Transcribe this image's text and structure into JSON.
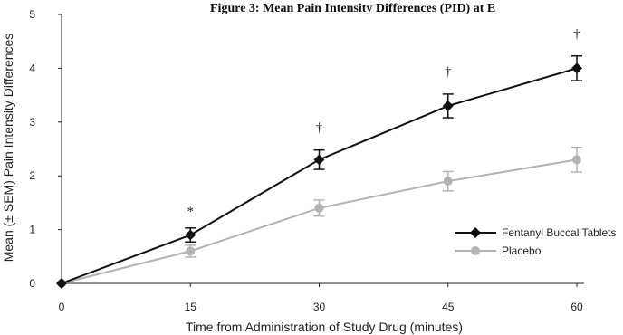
{
  "chart_data": {
    "type": "line",
    "title": "Figure 3: Mean Pain Intensity Differences (PID) at E",
    "xlabel": "Time from Administration of Study Drug (minutes)",
    "ylabel": "Mean (± SEM) Pain Intensity Differences",
    "x": [
      0,
      15,
      30,
      45,
      60
    ],
    "xlim": [
      0,
      60
    ],
    "ylim": [
      0,
      5
    ],
    "xticks": [
      "0",
      "15",
      "30",
      "45",
      "60"
    ],
    "yticks": [
      "0",
      "1",
      "2",
      "3",
      "4",
      "5"
    ],
    "grid": false,
    "legend_position": "right",
    "series": [
      {
        "name": "Fentanyl Buccal Tablets",
        "color": "#111111",
        "marker": "diamond",
        "values": [
          0,
          0.9,
          2.3,
          3.3,
          4.0
        ],
        "sem": [
          0,
          0.13,
          0.18,
          0.22,
          0.23
        ]
      },
      {
        "name": "Placebo",
        "color": "#b3b3b3",
        "marker": "circle",
        "values": [
          0,
          0.6,
          1.4,
          1.9,
          2.3
        ],
        "sem": [
          0,
          0.11,
          0.15,
          0.18,
          0.23
        ]
      }
    ],
    "annotations": [
      {
        "x": 15,
        "y": 1.35,
        "text": "*"
      },
      {
        "x": 30,
        "y": 2.9,
        "text": "†"
      },
      {
        "x": 45,
        "y": 3.95,
        "text": "†"
      },
      {
        "x": 60,
        "y": 4.65,
        "text": "†"
      }
    ]
  }
}
